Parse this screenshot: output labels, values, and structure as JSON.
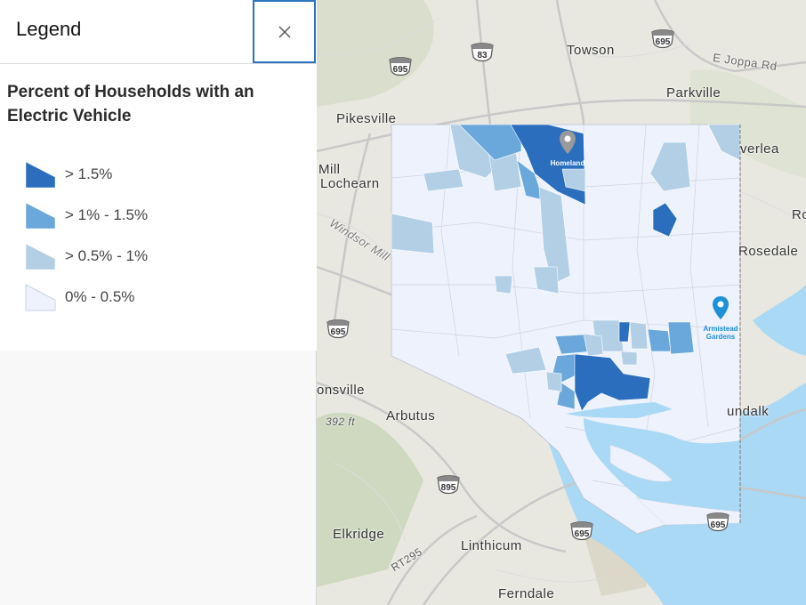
{
  "legend": {
    "title": "Legend",
    "close_label": "×",
    "layer_title": "Percent of Households with an Electric Vehicle",
    "classes": [
      {
        "label": "> 1.5%",
        "color": "#2a6ebd"
      },
      {
        "label": "> 1% - 1.5%",
        "color": "#6aa8dc"
      },
      {
        "label": "> 0.5% - 1%",
        "color": "#b2cfe6"
      },
      {
        "label": "0% - 0.5%",
        "color": "#eef2fc"
      }
    ]
  },
  "map": {
    "places": [
      "Towson",
      "Parkville",
      "Pikesville",
      "Mill",
      "Lochearn",
      "Windsor Mill",
      "verlea",
      "Ro",
      "Rosedale",
      "onsville",
      "Arbutus",
      "392 ft",
      "undalk",
      "Elkridge",
      "Linthicum",
      "Ferndale",
      "E Joppa Rd",
      "RT295"
    ],
    "shields": [
      "83",
      "695",
      "695",
      "695",
      "895",
      "695",
      "695"
    ],
    "pins": [
      {
        "label": "Homeland",
        "color": "#9a9a9a"
      },
      {
        "label": "Armistead Gardens",
        "color": "#1e90d6"
      }
    ],
    "colors": {
      "water": "#aad9f5",
      "land": "#e9e8e0",
      "low": "#eef2fc",
      "mid_low": "#b2cfe6",
      "mid_high": "#6aa8dc",
      "high": "#2a6ebd"
    }
  }
}
